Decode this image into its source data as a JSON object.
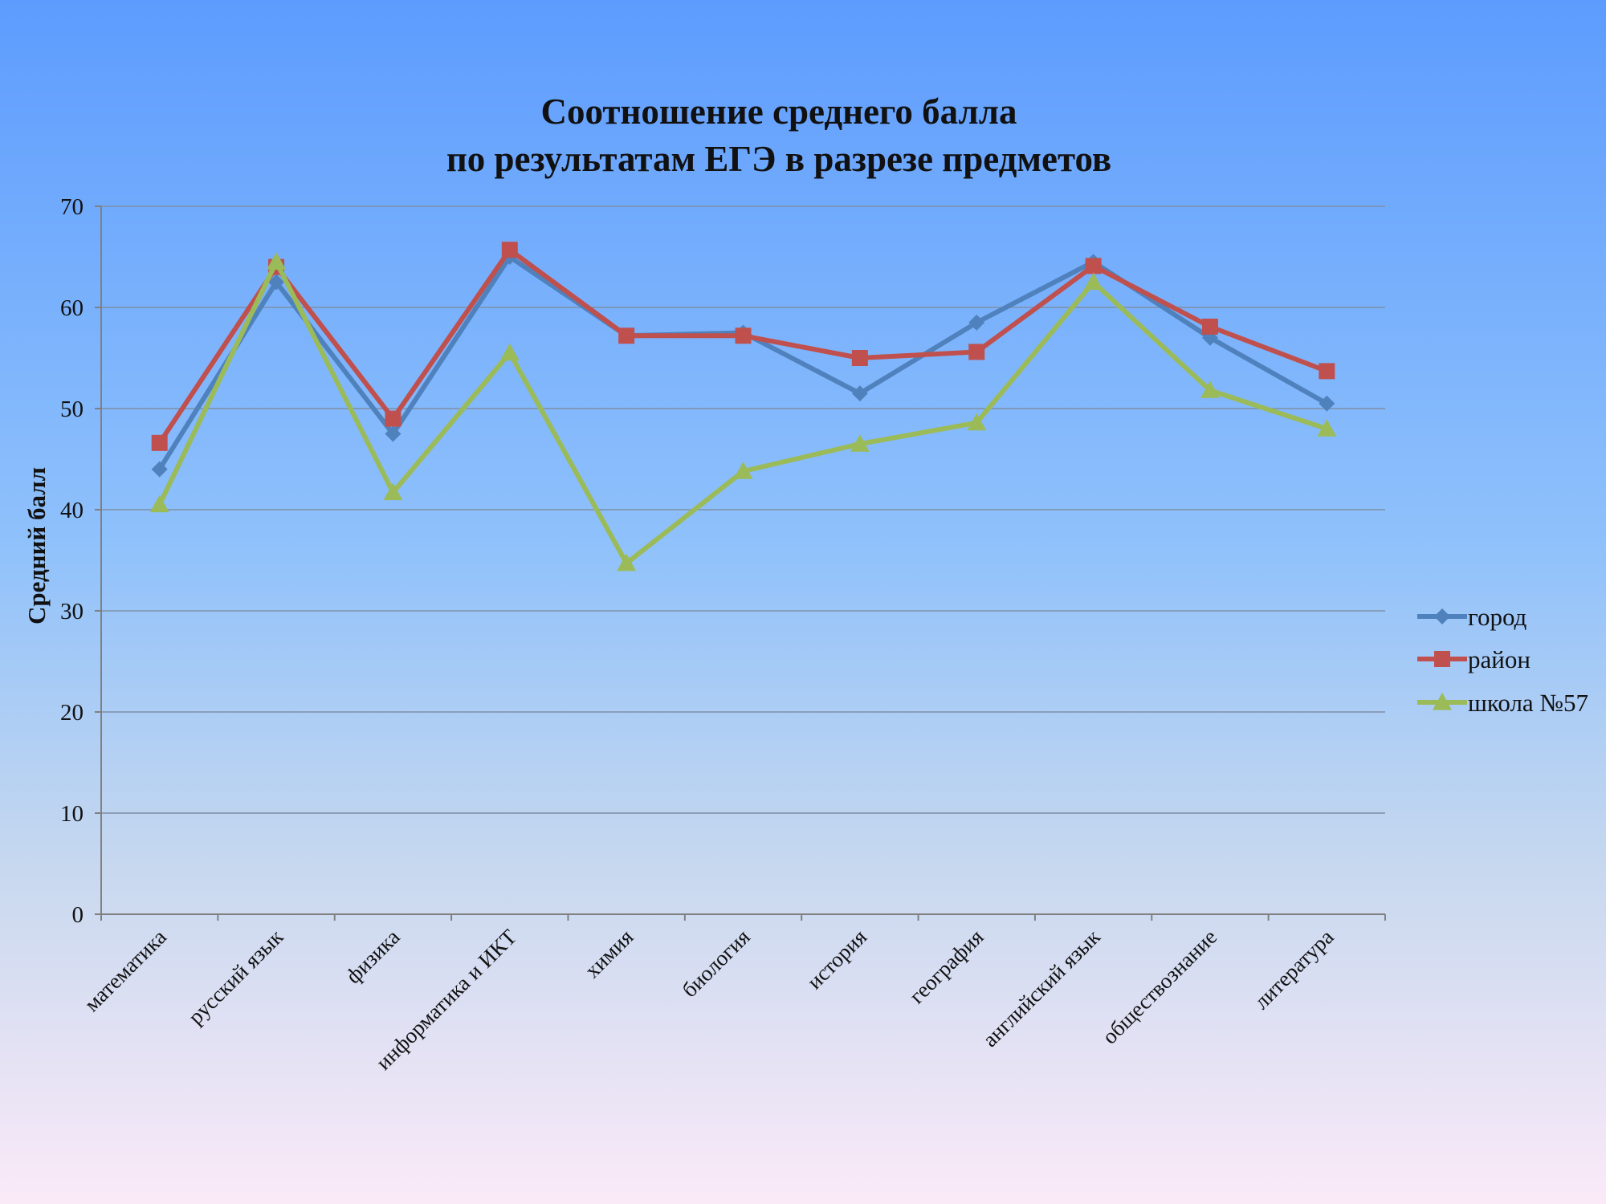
{
  "chart_data": {
    "type": "line",
    "title_line1": "Соотношение среднего балла",
    "title_line2": "по результатам ЕГЭ в разрезе предметов",
    "ylabel": "Средний балл",
    "xlabel": "",
    "ylim": [
      0,
      70
    ],
    "yticks": [
      0,
      10,
      20,
      30,
      40,
      50,
      60,
      70
    ],
    "grid": true,
    "legend_position": "right",
    "categories": [
      "математика",
      "русский язык",
      "физика",
      "информатика и ИКТ",
      "химия",
      "биология",
      "история",
      "география",
      "английский язык",
      "обществознание",
      "литература"
    ],
    "series": [
      {
        "name": "город",
        "color": "#4f81bd",
        "marker": "diamond",
        "values": [
          44,
          62.5,
          47.5,
          65,
          57.2,
          57.5,
          51.5,
          58.5,
          64.5,
          57,
          50.5
        ]
      },
      {
        "name": "район",
        "color": "#c0504d",
        "marker": "square",
        "values": [
          46.6,
          64,
          49,
          65.7,
          57.2,
          57.2,
          55,
          55.6,
          64.1,
          58.1,
          53.7
        ]
      },
      {
        "name": "школа №57",
        "color": "#9bbb59",
        "marker": "triangle",
        "values": [
          40.5,
          64.5,
          41.7,
          55.5,
          34.7,
          43.8,
          46.5,
          48.6,
          62.5,
          51.8,
          48
        ]
      }
    ]
  }
}
